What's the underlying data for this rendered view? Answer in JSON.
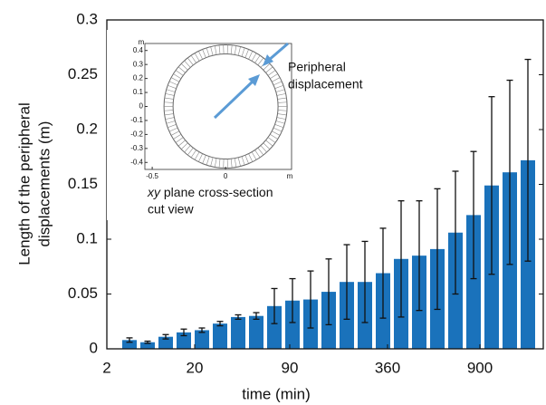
{
  "chart_data": {
    "type": "bar",
    "xlabel": "time (min)",
    "ylabel": [
      "Length of the peripheral",
      "displacements (m)"
    ],
    "x": [
      1,
      2,
      3,
      4,
      5,
      6,
      7,
      8,
      9,
      10,
      11,
      12,
      13,
      14,
      15,
      16,
      17,
      18,
      19,
      20,
      21,
      22,
      23
    ],
    "values": [
      0.008,
      0.006,
      0.011,
      0.015,
      0.017,
      0.023,
      0.029,
      0.03,
      0.039,
      0.044,
      0.045,
      0.052,
      0.061,
      0.061,
      0.069,
      0.082,
      0.085,
      0.091,
      0.106,
      0.122,
      0.149,
      0.161,
      0.172
    ],
    "errors": [
      0.002,
      0.001,
      0.002,
      0.003,
      0.002,
      0.002,
      0.002,
      0.003,
      0.016,
      0.02,
      0.026,
      0.03,
      0.034,
      0.037,
      0.041,
      0.053,
      0.05,
      0.055,
      0.056,
      0.058,
      0.081,
      0.084,
      0.092
    ],
    "color": "#1a72bb",
    "xlim": [
      -0.25,
      23.85
    ],
    "xticks": [
      {
        "value": -0.25,
        "label": "2"
      },
      {
        "value": 4.6,
        "label": "20"
      },
      {
        "value": 9.85,
        "label": "90"
      },
      {
        "value": 15.25,
        "label": "360"
      },
      {
        "value": 20.35,
        "label": "900"
      }
    ],
    "ylim": [
      0,
      0.3
    ],
    "yticks": [
      0,
      0.05,
      0.1,
      0.15,
      0.2,
      0.25,
      0.3
    ],
    "inset": {
      "unit": "m",
      "xlim": [
        -0.55,
        0.45
      ],
      "ylim": [
        -0.45,
        0.45
      ],
      "xticks": [
        -0.5,
        0
      ],
      "yticks": [
        0.4,
        0.3,
        0.2,
        0.1,
        0,
        -0.1,
        -0.2,
        -0.3,
        -0.4
      ],
      "annotation": [
        "Peripheral",
        "displacement"
      ],
      "caption_italic": "xy",
      "caption": [
        " plane cross-section",
        "cut view"
      ]
    }
  }
}
